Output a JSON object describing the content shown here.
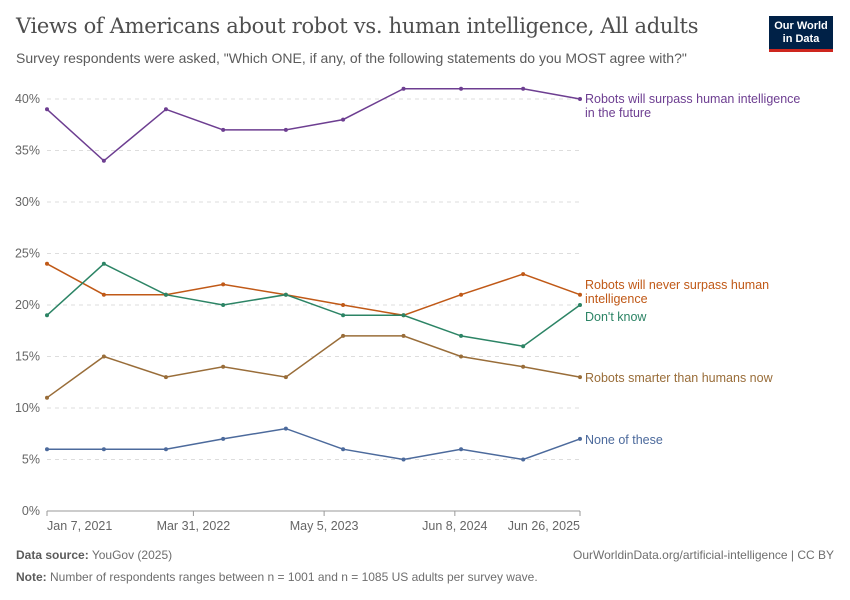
{
  "header": {
    "title": "Views of Americans about robot vs. human intelligence, All adults",
    "subtitle": "Survey respondents were asked, \"Which ONE, if any, of the following statements do you MOST agree with?\"",
    "logo": "Our World in Data"
  },
  "footer": {
    "source_label": "Data source:",
    "source": "YouGov (2025)",
    "url": "OurWorldinData.org/artificial-intelligence | CC BY",
    "note_label": "Note:",
    "note": "Number of respondents ranges between n = 1001 and n = 1085 US adults per survey wave."
  },
  "chart_data": {
    "type": "line",
    "ylim": [
      0,
      40
    ],
    "y_ticks": [
      "0%",
      "5%",
      "10%",
      "15%",
      "20%",
      "25%",
      "30%",
      "35%",
      "40%"
    ],
    "x_ticks": [
      {
        "date": "2021-01-07",
        "label": "Jan 7, 2021"
      },
      {
        "date": "2022-03-31",
        "label": "Mar 31, 2022"
      },
      {
        "date": "2023-05-05",
        "label": "May 5, 2023"
      },
      {
        "date": "2024-06-08",
        "label": "Jun 8, 2024"
      },
      {
        "date": "2025-06-26",
        "label": "Jun 26, 2025"
      }
    ],
    "xlim": [
      "2021-01-07",
      "2025-06-26"
    ],
    "grid": true,
    "x": [
      "2021-01-07",
      "2021-06-30",
      "2022-01-06",
      "2022-06-30",
      "2023-01-08",
      "2023-07-02",
      "2024-01-03",
      "2024-06-27",
      "2025-01-03",
      "2025-06-26"
    ],
    "series": [
      {
        "name": "Robots will surpass human intelligence in the future",
        "label_lines": [
          "Robots will surpass human intelligence",
          "in the future"
        ],
        "color": "#6d3e91",
        "values": [
          39,
          34,
          39,
          37,
          37,
          38,
          41,
          41,
          41,
          40
        ]
      },
      {
        "name": "Robots will never surpass human intelligence",
        "label_lines": [
          "Robots will never surpass human",
          "intelligence"
        ],
        "color": "#c05917",
        "values": [
          24,
          21,
          21,
          22,
          21,
          20,
          19,
          21,
          23,
          21
        ]
      },
      {
        "name": "Don't know",
        "label_lines": [
          "Don't know"
        ],
        "color": "#2c8465",
        "values": [
          19,
          24,
          21,
          20,
          21,
          19,
          19,
          17,
          16,
          20
        ]
      },
      {
        "name": "Robots smarter than humans now",
        "label_lines": [
          "Robots smarter than humans now"
        ],
        "color": "#996d39",
        "values": [
          11,
          15,
          13,
          14,
          13,
          17,
          17,
          15,
          14,
          13
        ]
      },
      {
        "name": "None of these",
        "label_lines": [
          "None of these"
        ],
        "color": "#4c6a9c",
        "values": [
          6,
          6,
          6,
          7,
          8,
          6,
          5,
          6,
          5,
          7
        ]
      }
    ]
  }
}
